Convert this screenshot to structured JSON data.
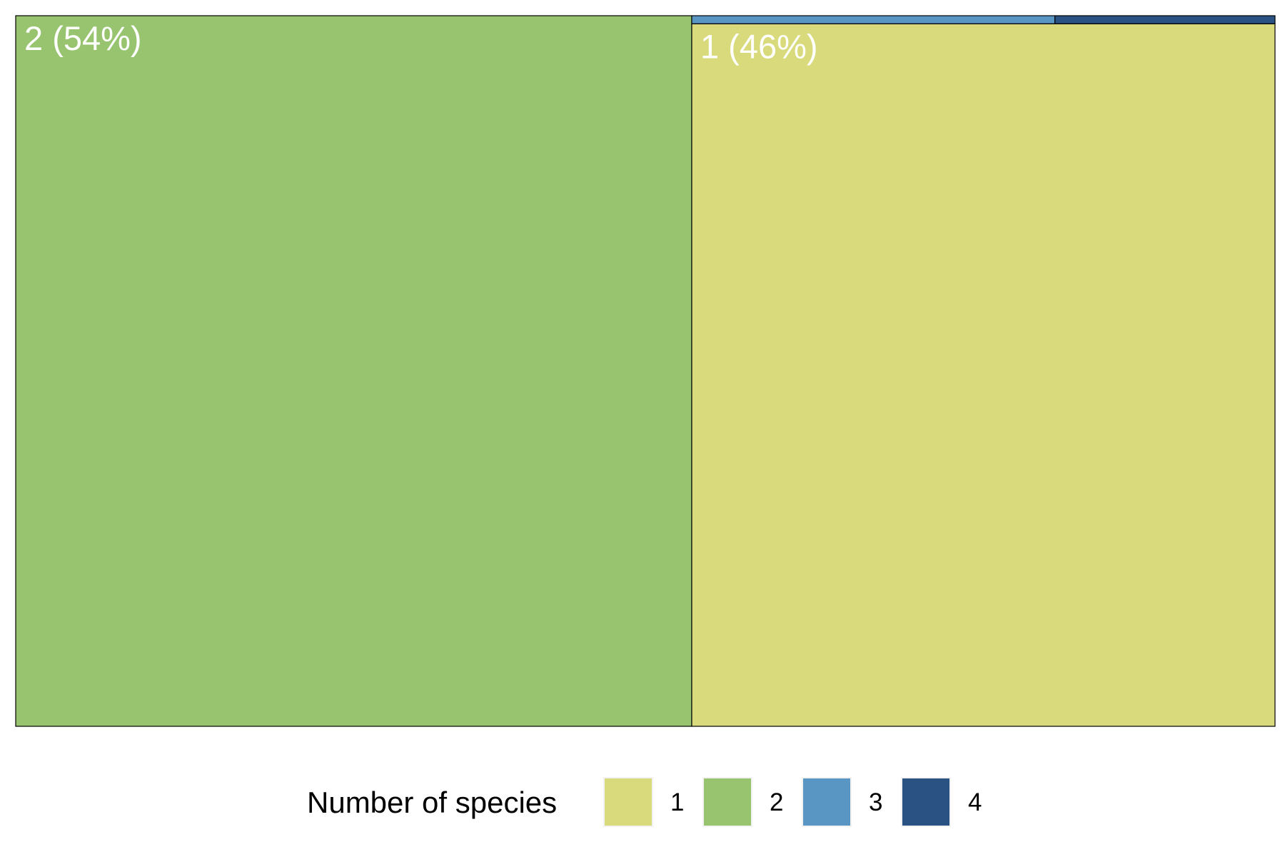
{
  "chart_data": {
    "type": "treemap",
    "title": "",
    "categories": [
      "1",
      "2",
      "3",
      "4"
    ],
    "values": [
      45.8,
      53.7,
      0.33,
      0.2
    ],
    "tile_labels": {
      "1": "1 (46%)",
      "2": "2 (54%)"
    },
    "colors": {
      "1": "#d8da7c",
      "2": "#98c46f",
      "3": "#5996c3",
      "4": "#2a5383"
    },
    "legend": {
      "title": "Number of species",
      "placement": "bottom",
      "items": [
        "1",
        "2",
        "3",
        "4"
      ]
    }
  }
}
